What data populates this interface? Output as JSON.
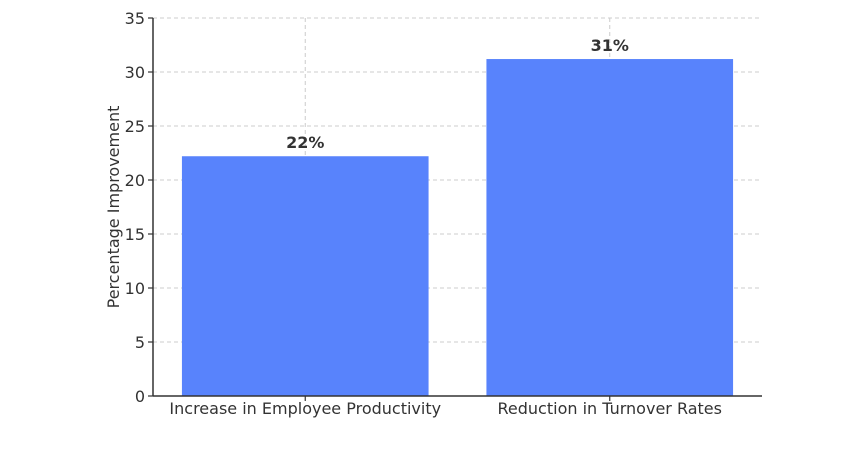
{
  "chart_data": {
    "type": "bar",
    "title": "",
    "xlabel": "",
    "ylabel": "Percentage Improvement",
    "categories": [
      "Increase in Employee Productivity",
      "Reduction in Turnover Rates"
    ],
    "values": [
      22.2,
      31.2
    ],
    "data_labels": [
      "22%",
      "31%"
    ],
    "ylim": [
      0,
      35
    ],
    "yticks": [
      0,
      5,
      10,
      15,
      20,
      25,
      30,
      35
    ],
    "grid": true,
    "bar_color": "#5883fc"
  }
}
